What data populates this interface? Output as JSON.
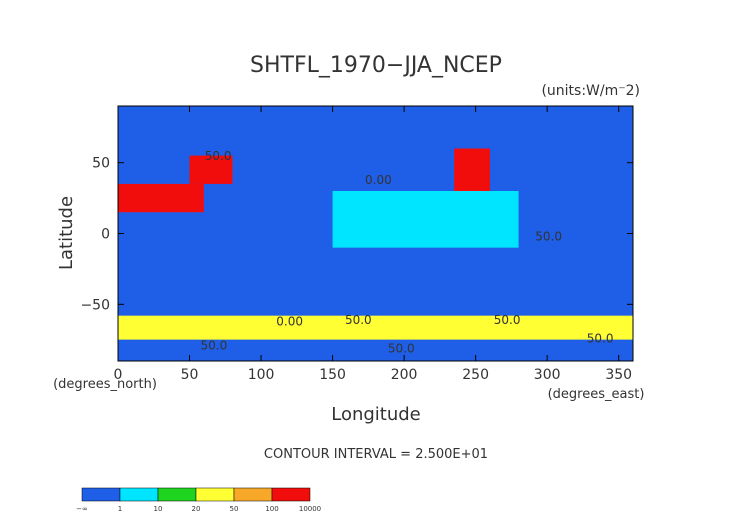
{
  "chart_data": {
    "type": "heatmap",
    "title": "SHTFL_1970−JJA_NCEP",
    "units": "(units:W/m⁻2)",
    "xlabel": "Longitude",
    "ylabel": "Latitude",
    "x_unit_note": "(degrees_east)",
    "y_unit_note": "(degrees_north)",
    "xlim": [
      0,
      360
    ],
    "ylim": [
      -90,
      90
    ],
    "x_ticks": [
      0,
      50,
      100,
      150,
      200,
      250,
      300,
      350
    ],
    "y_ticks": [
      50,
      0,
      -50
    ],
    "x_tick_labels": [
      "0",
      "50",
      "100",
      "150",
      "200",
      "250",
      "300",
      "350"
    ],
    "y_tick_labels": [
      "50",
      "0",
      "−50"
    ],
    "contour_interval": "CONTOUR INTERVAL = 2.500E+01",
    "contour_labels": [
      {
        "text": "50.0",
        "lon": 70,
        "lat": 52
      },
      {
        "text": "0.00",
        "lon": 182,
        "lat": 35
      },
      {
        "text": "50.0",
        "lon": 301,
        "lat": -5
      },
      {
        "text": "0.00",
        "lon": 120,
        "lat": -65
      },
      {
        "text": "50.0",
        "lon": 168,
        "lat": -64
      },
      {
        "text": "50.0",
        "lon": 272,
        "lat": -64
      },
      {
        "text": "50.0",
        "lon": 67,
        "lat": -82
      },
      {
        "text": "50.0",
        "lon": 198,
        "lat": -84
      },
      {
        "text": "50.0",
        "lon": 337,
        "lat": -77
      }
    ],
    "legend": {
      "colors": [
        "#1f5ee6",
        "#00e5ff",
        "#1fd41f",
        "#ffff33",
        "#f7a829",
        "#f20d0d"
      ],
      "labels": [
        "−∞",
        "1",
        "10",
        "20",
        "50",
        "100",
        "10000"
      ],
      "placement": "bottom-left"
    },
    "regions": [
      {
        "name": "polar-north",
        "lon": [
          0,
          360
        ],
        "lat": [
          75,
          90
        ],
        "class": 0
      },
      {
        "name": "tropical-pacific",
        "lon": [
          150,
          280
        ],
        "lat": [
          -10,
          30
        ],
        "class": 1
      },
      {
        "name": "southern-ocean",
        "lon": [
          0,
          360
        ],
        "lat": [
          -75,
          -58
        ],
        "class": 3
      },
      {
        "name": "antarctica",
        "lon": [
          0,
          360
        ],
        "lat": [
          -90,
          -75
        ],
        "class": 0
      },
      {
        "name": "sahara-arabia",
        "lon": [
          0,
          60
        ],
        "lat": [
          15,
          35
        ],
        "class": 5
      },
      {
        "name": "central-asia",
        "lon": [
          50,
          80
        ],
        "lat": [
          35,
          55
        ],
        "class": 5
      },
      {
        "name": "western-north-america",
        "lon": [
          235,
          260
        ],
        "lat": [
          30,
          60
        ],
        "class": 5
      }
    ]
  }
}
